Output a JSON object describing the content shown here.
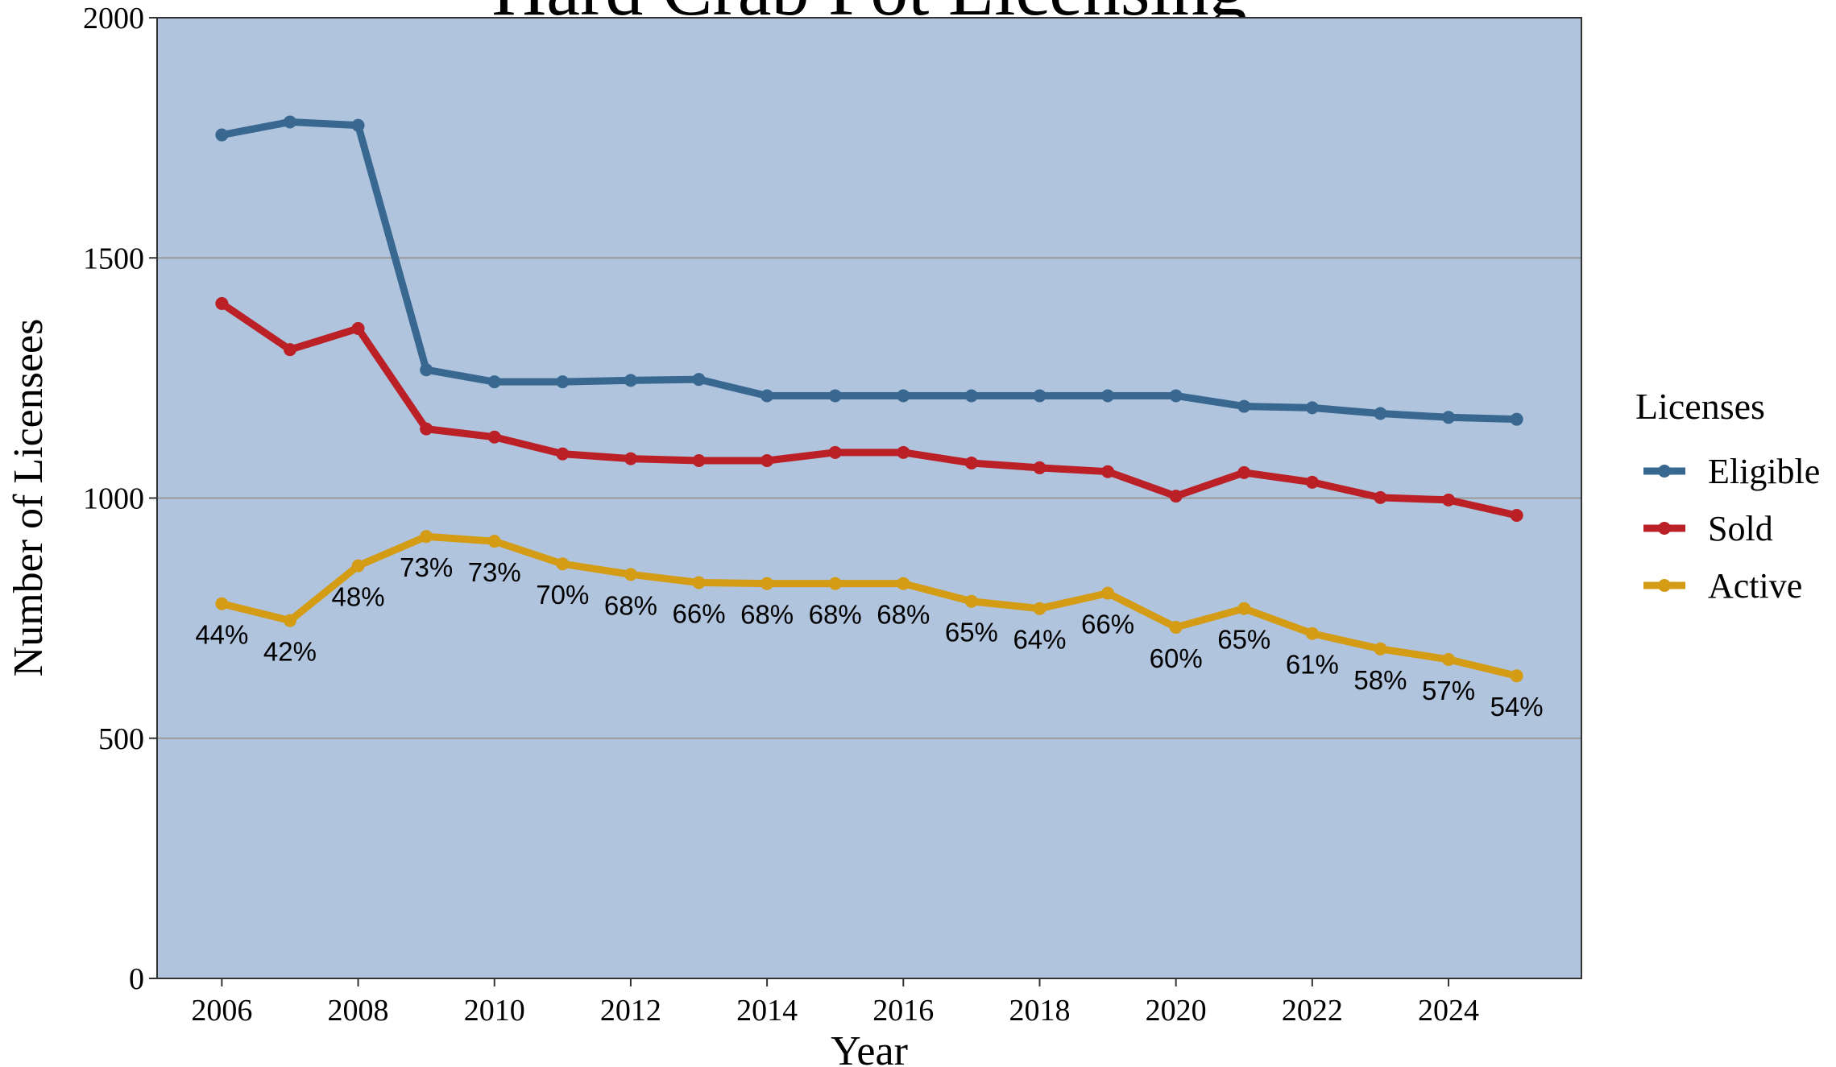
{
  "chart_data": {
    "type": "line",
    "title": "Hard Crab Pot Licensing",
    "x_label": "Year",
    "y_label": "Number of Licensees",
    "x": [
      2006,
      2007,
      2008,
      2009,
      2010,
      2011,
      2012,
      2013,
      2014,
      2015,
      2016,
      2017,
      2018,
      2019,
      2020,
      2021,
      2022,
      2023,
      2024,
      2025
    ],
    "series": [
      {
        "name": "Eligible",
        "color": "#386890",
        "values": [
          1756,
          1783,
          1776,
          1267,
          1242,
          1242,
          1245,
          1247,
          1213,
          1213,
          1213,
          1213,
          1213,
          1213,
          1213,
          1191,
          1188,
          1176,
          1168,
          1164
        ]
      },
      {
        "name": "Sold",
        "color": "#bb2026",
        "values": [
          1405,
          1309,
          1353,
          1144,
          1127,
          1092,
          1082,
          1078,
          1078,
          1095,
          1095,
          1073,
          1063,
          1055,
          1004,
          1053,
          1033,
          1001,
          996,
          964
        ]
      },
      {
        "name": "Active",
        "color": "#d39c14",
        "values": [
          780,
          745,
          859,
          920,
          910,
          863,
          841,
          824,
          822,
          822,
          822,
          785,
          770,
          802,
          731,
          770,
          718,
          686,
          664,
          630
        ],
        "annotations": [
          "44%",
          "42%",
          "48%",
          "73%",
          "73%",
          "70%",
          "68%",
          "66%",
          "68%",
          "68%",
          "68%",
          "65%",
          "64%",
          "66%",
          "60%",
          "65%",
          "61%",
          "58%",
          "57%",
          "54%"
        ]
      }
    ],
    "legend_title": "Licenses",
    "legend": "right",
    "xlim": [
      2005.05,
      2025.95
    ],
    "xticks": [
      2006,
      2008,
      2010,
      2012,
      2014,
      2016,
      2018,
      2020,
      2022,
      2024
    ],
    "ylim": [
      0,
      2000
    ],
    "yticks": [
      0,
      500,
      1000,
      1500,
      2000
    ],
    "grid": true,
    "background": "#b0c4de"
  }
}
